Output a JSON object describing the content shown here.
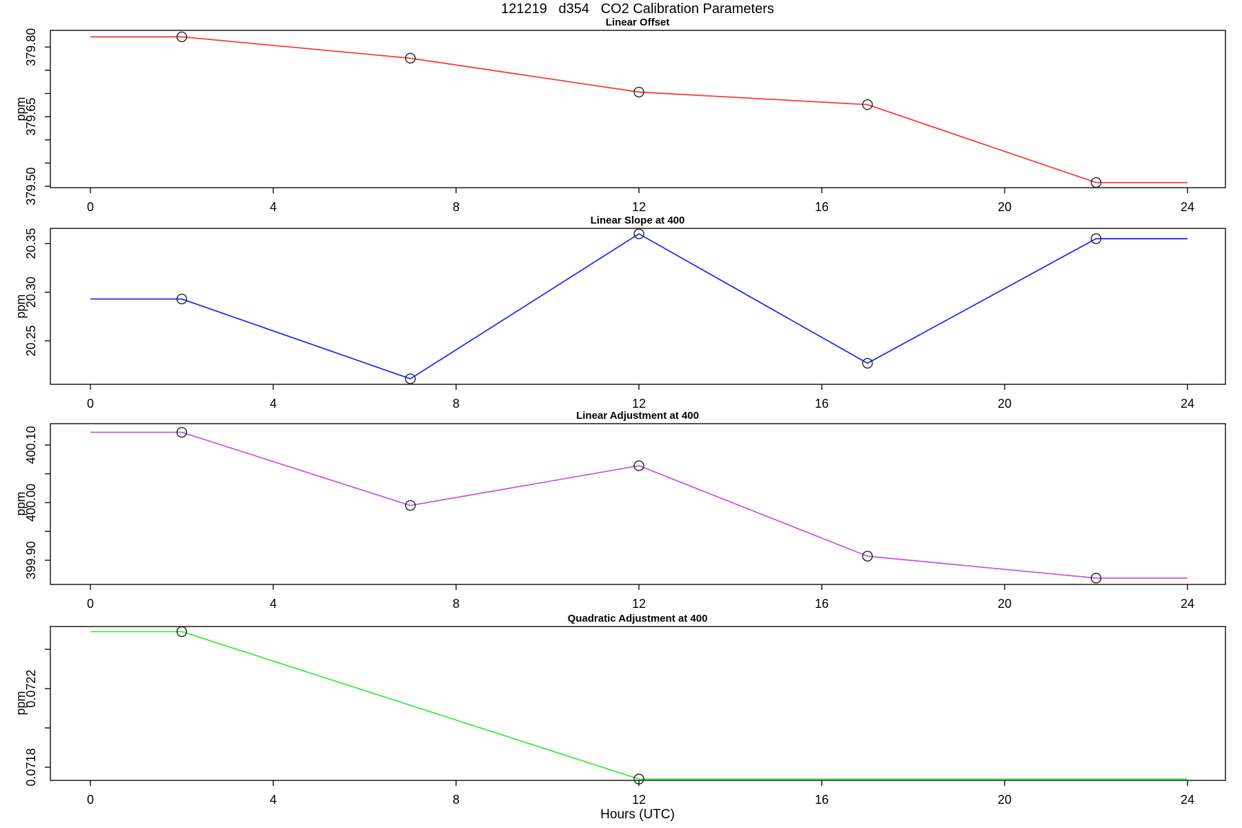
{
  "figure": {
    "title": "121219   d354   CO2 Calibration Parameters",
    "xlabel": "Hours (UTC)",
    "ylabel": "ppm"
  },
  "chart_data": [
    {
      "type": "line",
      "title": "Linear Offset",
      "ylabel": "ppm",
      "color": "#f93a3a",
      "marker_color": "#222222",
      "x": [
        0,
        2,
        7,
        12,
        17,
        22,
        24
      ],
      "values": [
        379.822,
        379.822,
        379.776,
        379.703,
        379.676,
        379.508,
        379.508
      ],
      "marker_hours": [
        2,
        7,
        12,
        17,
        22
      ],
      "ylim": [
        379.497,
        379.836
      ],
      "xlim": [
        0,
        24
      ],
      "yticks": [
        {
          "value": 379.5,
          "label": "379.50"
        },
        {
          "value": 379.55,
          "label": ""
        },
        {
          "value": 379.6,
          "label": ""
        },
        {
          "value": 379.65,
          "label": "379.65"
        },
        {
          "value": 379.7,
          "label": ""
        },
        {
          "value": 379.75,
          "label": ""
        },
        {
          "value": 379.8,
          "label": "379.80"
        }
      ],
      "xticks": [
        0,
        4,
        8,
        12,
        16,
        20,
        24
      ],
      "grid": false,
      "legend": "none"
    },
    {
      "type": "line",
      "title": "Linear Slope at 400",
      "ylabel": "ppm",
      "color": "#2a2af0",
      "marker_color": "#222222",
      "x": [
        0,
        2,
        7,
        12,
        17,
        22,
        24
      ],
      "values": [
        20.293,
        20.293,
        20.211,
        20.36,
        20.227,
        20.355,
        20.355
      ],
      "marker_hours": [
        2,
        7,
        12,
        17,
        22
      ],
      "ylim": [
        20.2053,
        20.3656
      ],
      "xlim": [
        0,
        24
      ],
      "yticks": [
        {
          "value": 20.25,
          "label": "20.25"
        },
        {
          "value": 20.3,
          "label": "20.30"
        },
        {
          "value": 20.35,
          "label": "20.35"
        }
      ],
      "xticks": [
        0,
        4,
        8,
        12,
        16,
        20,
        24
      ],
      "grid": false,
      "legend": "none"
    },
    {
      "type": "line",
      "title": "Linear Adjustment at 400",
      "ylabel": "ppm",
      "color": "#cd55eb",
      "marker_color": "#222222",
      "x": [
        0,
        2,
        7,
        12,
        17,
        22,
        24
      ],
      "values": [
        400.122,
        400.122,
        399.995,
        400.064,
        399.907,
        399.869,
        399.869
      ],
      "marker_hours": [
        2,
        7,
        12,
        17,
        22
      ],
      "ylim": [
        399.858,
        400.137
      ],
      "xlim": [
        0,
        24
      ],
      "yticks": [
        {
          "value": 399.9,
          "label": "399.90"
        },
        {
          "value": 399.95,
          "label": ""
        },
        {
          "value": 400.0,
          "label": "400.00"
        },
        {
          "value": 400.05,
          "label": ""
        },
        {
          "value": 400.1,
          "label": "400.10"
        }
      ],
      "xticks": [
        0,
        4,
        8,
        12,
        16,
        20,
        24
      ],
      "grid": false,
      "legend": "none"
    },
    {
      "type": "line",
      "title": "Quadratic Adjustment at 400",
      "ylabel": "ppm",
      "color": "#3fe93f",
      "marker_color": "#222222",
      "x": [
        0,
        2,
        12,
        24
      ],
      "values": [
        0.07249,
        0.07249,
        0.07174,
        0.07174
      ],
      "marker_hours": [
        2,
        12
      ],
      "ylim": [
        0.071733,
        0.072516
      ],
      "xlim": [
        0,
        24
      ],
      "yticks": [
        {
          "value": 0.0718,
          "label": "0.0718"
        },
        {
          "value": 0.072,
          "label": ""
        },
        {
          "value": 0.0722,
          "label": "0.0722"
        },
        {
          "value": 0.0724,
          "label": ""
        }
      ],
      "xticks": [
        0,
        4,
        8,
        12,
        16,
        20,
        24
      ],
      "grid": false,
      "legend": "none"
    }
  ]
}
